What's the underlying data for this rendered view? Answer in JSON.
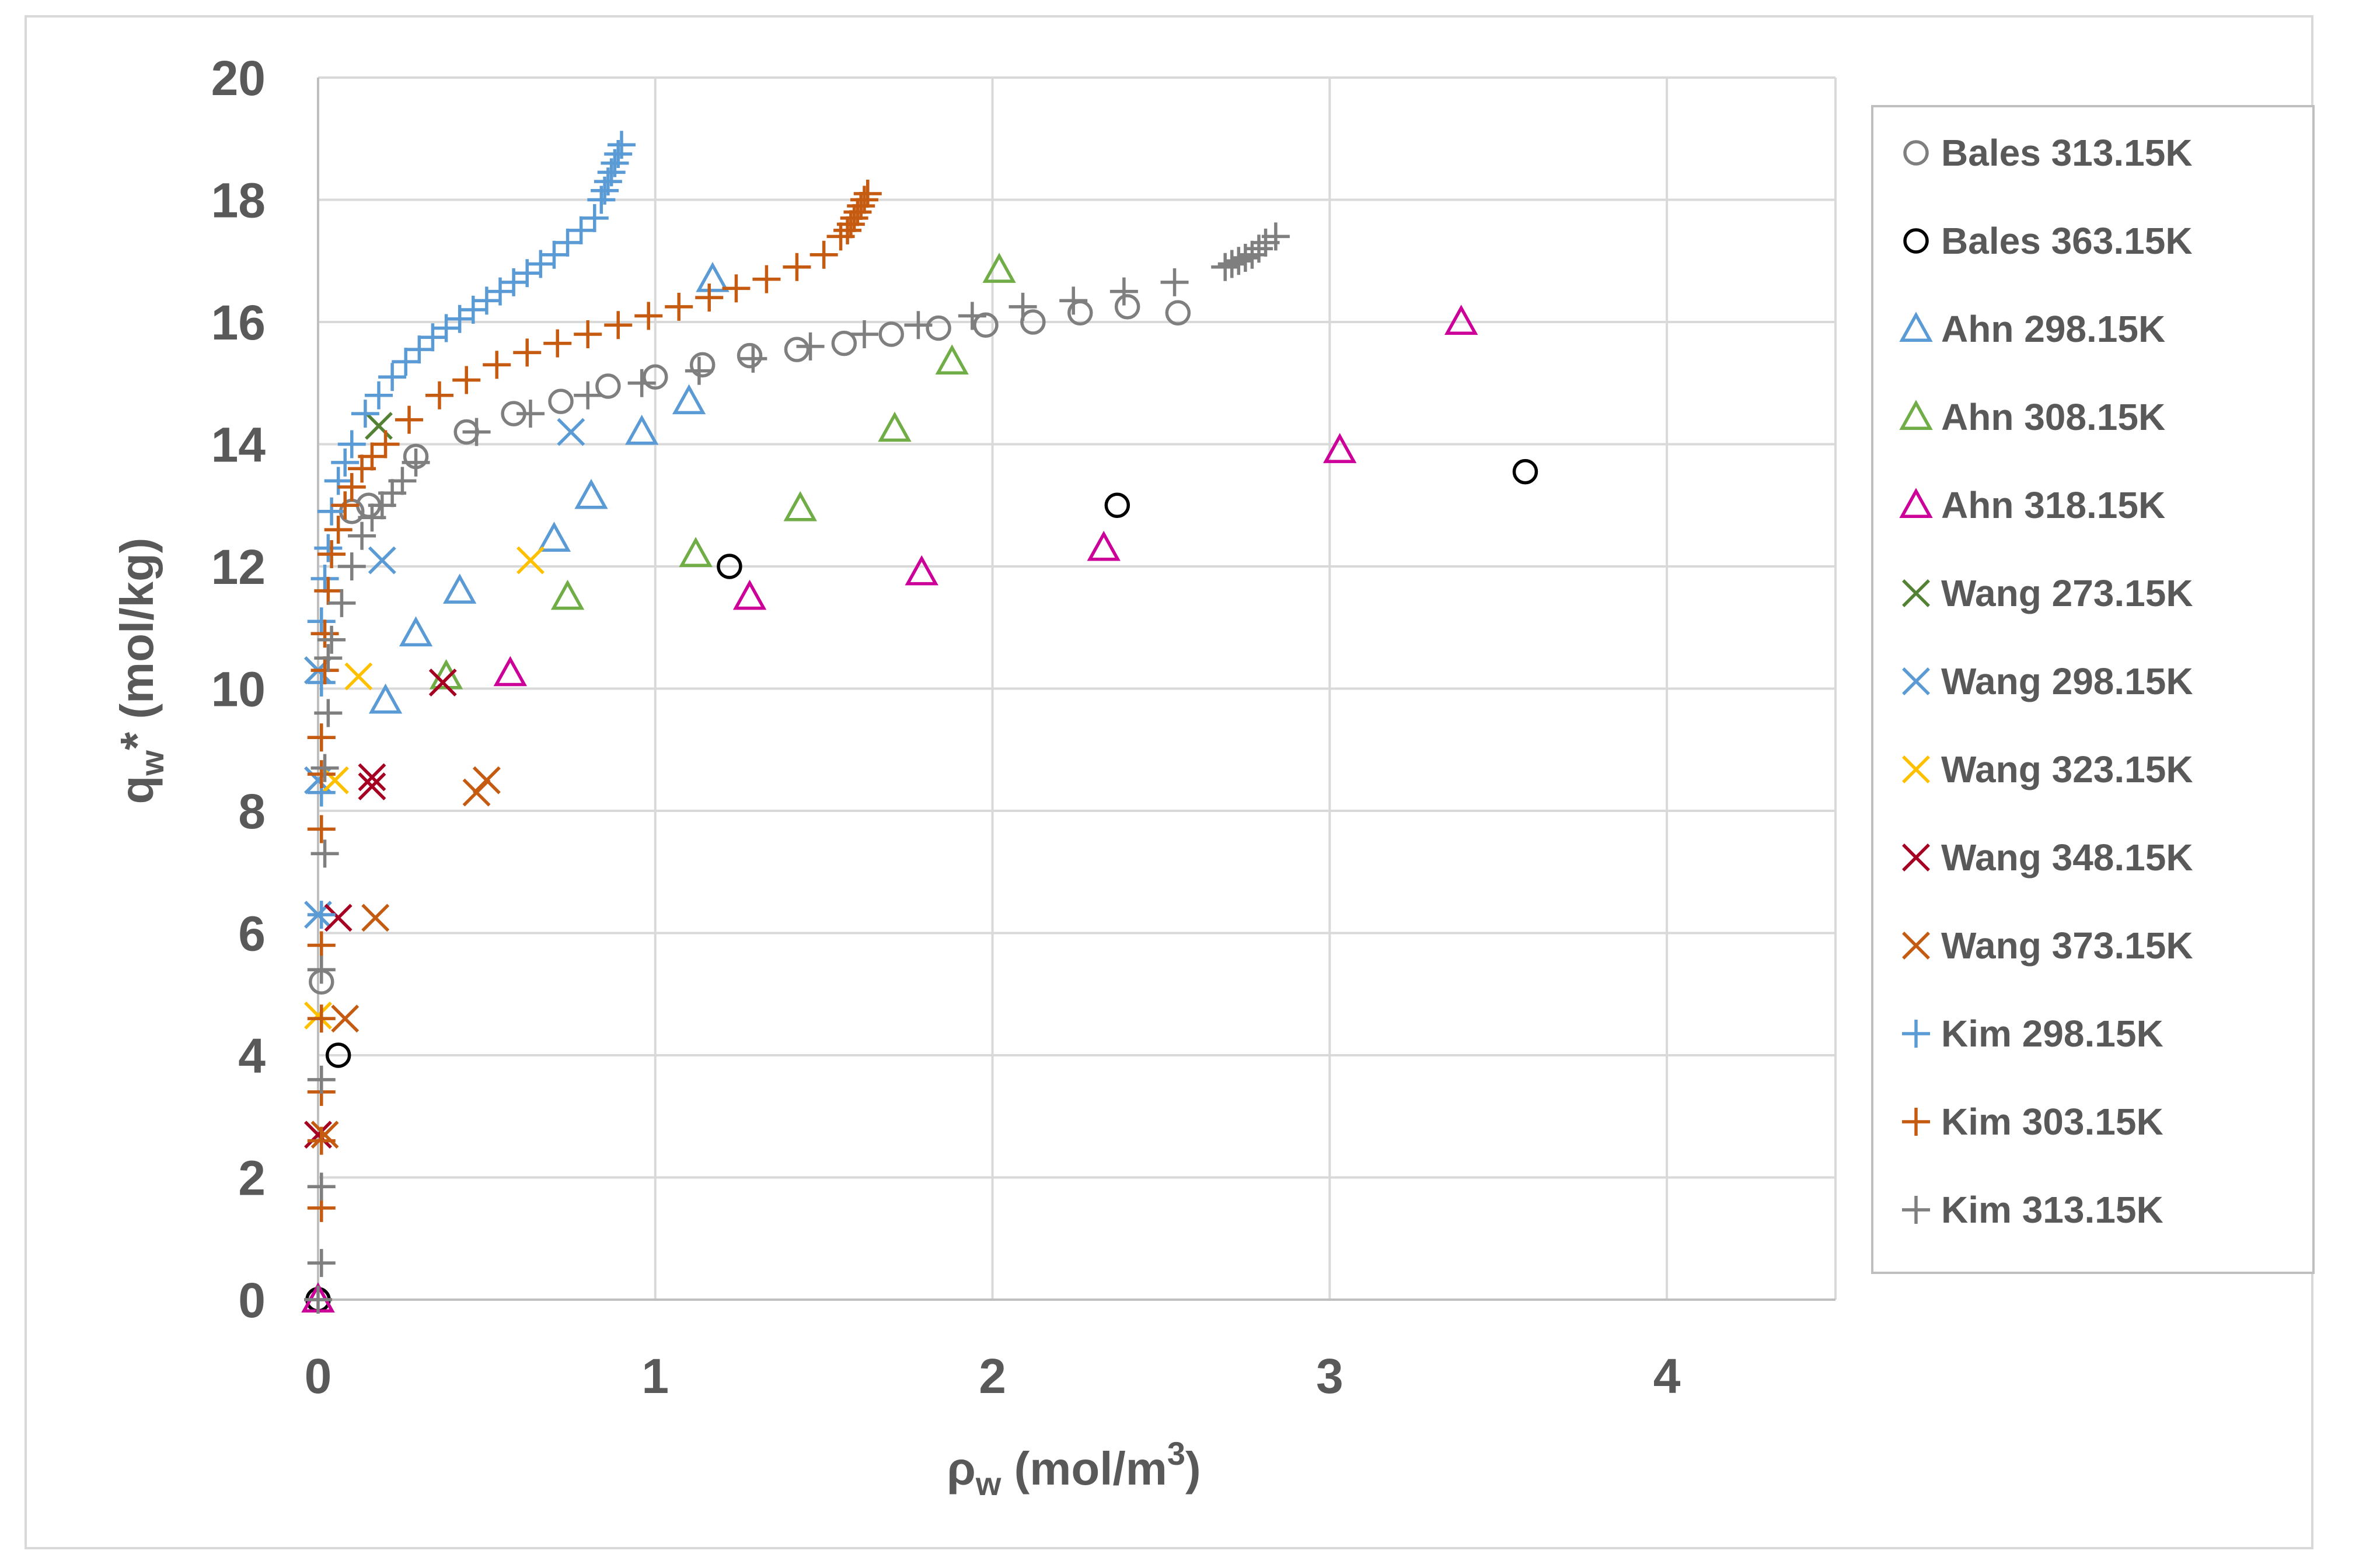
{
  "chart_data": {
    "type": "scatter",
    "title": "",
    "xlabel_parts": {
      "main": "ρ",
      "sub": "w",
      "rest": " (mol/m",
      "sup": "3",
      "end": ")"
    },
    "ylabel_parts": {
      "main": "q",
      "sub": "w",
      "rest": "* (mol/kg)"
    },
    "xlim": [
      0,
      4.5
    ],
    "ylim": [
      0,
      20
    ],
    "x_ticks": [
      0,
      1,
      2,
      3,
      4
    ],
    "y_ticks": [
      0,
      2,
      4,
      6,
      8,
      10,
      12,
      14,
      16,
      18,
      20
    ],
    "grid": true,
    "legend_position": "right",
    "series": [
      {
        "name": "Bales 313.15K",
        "marker": "circle",
        "color": "#7f7f7f",
        "points": [
          [
            0,
            0
          ],
          [
            0.01,
            5.2
          ],
          [
            0.1,
            12.9
          ],
          [
            0.15,
            13.0
          ],
          [
            0.29,
            13.8
          ],
          [
            0.44,
            14.2
          ],
          [
            0.58,
            14.5
          ],
          [
            0.72,
            14.7
          ],
          [
            0.86,
            14.95
          ],
          [
            1.0,
            15.1
          ],
          [
            1.14,
            15.3
          ],
          [
            1.28,
            15.45
          ],
          [
            1.42,
            15.55
          ],
          [
            1.56,
            15.65
          ],
          [
            1.7,
            15.8
          ],
          [
            1.84,
            15.9
          ],
          [
            1.98,
            15.95
          ],
          [
            2.12,
            16.0
          ],
          [
            2.26,
            16.15
          ],
          [
            2.4,
            16.25
          ],
          [
            2.55,
            16.15
          ]
        ]
      },
      {
        "name": "Bales 363.15K",
        "marker": "circle",
        "color": "#000000",
        "points": [
          [
            0,
            0
          ],
          [
            0.06,
            4.0
          ],
          [
            1.22,
            12.0
          ],
          [
            2.37,
            13.0
          ],
          [
            3.58,
            13.55
          ]
        ]
      },
      {
        "name": "Ahn 298.15K",
        "marker": "triangle",
        "color": "#5b9bd5",
        "points": [
          [
            0,
            0
          ],
          [
            0.2,
            9.8
          ],
          [
            0.29,
            10.9
          ],
          [
            0.42,
            11.6
          ],
          [
            0.7,
            12.45
          ],
          [
            0.81,
            13.15
          ],
          [
            0.96,
            14.2
          ],
          [
            1.1,
            14.7
          ],
          [
            1.17,
            16.7
          ]
        ]
      },
      {
        "name": "Ahn 308.15K",
        "marker": "triangle",
        "color": "#70ad47",
        "points": [
          [
            0,
            0
          ],
          [
            0.38,
            10.2
          ],
          [
            0.74,
            11.5
          ],
          [
            1.12,
            12.2
          ],
          [
            1.43,
            12.95
          ],
          [
            1.71,
            14.25
          ],
          [
            1.88,
            15.35
          ],
          [
            2.02,
            16.85
          ]
        ]
      },
      {
        "name": "Ahn 318.15K",
        "marker": "triangle",
        "color": "#cc0099",
        "points": [
          [
            0,
            0
          ],
          [
            0.57,
            10.25
          ],
          [
            1.28,
            11.5
          ],
          [
            1.79,
            11.9
          ],
          [
            2.33,
            12.3
          ],
          [
            3.03,
            13.9
          ],
          [
            3.39,
            16.0
          ]
        ]
      },
      {
        "name": "Wang 273.15K",
        "marker": "x",
        "color": "#548235",
        "points": [
          [
            0,
            10.3
          ],
          [
            0.18,
            14.3
          ]
        ]
      },
      {
        "name": "Wang 298.15K",
        "marker": "x",
        "color": "#5b9bd5",
        "points": [
          [
            0,
            6.3
          ],
          [
            0,
            8.5
          ],
          [
            0,
            10.3
          ],
          [
            0.19,
            12.1
          ],
          [
            0.75,
            14.2
          ]
        ]
      },
      {
        "name": "Wang 323.15K",
        "marker": "x",
        "color": "#ffc000",
        "points": [
          [
            0,
            4.65
          ],
          [
            0.05,
            8.5
          ],
          [
            0.12,
            10.2
          ],
          [
            0.63,
            12.1
          ]
        ]
      },
      {
        "name": "Wang 348.15K",
        "marker": "x",
        "color": "#a50021",
        "points": [
          [
            0,
            2.7
          ],
          [
            0.06,
            6.25
          ],
          [
            0.16,
            8.4
          ],
          [
            0.16,
            8.55
          ],
          [
            0.37,
            10.1
          ]
        ]
      },
      {
        "name": "Wang 373.15K",
        "marker": "x",
        "color": "#c55a11",
        "points": [
          [
            0.02,
            2.7
          ],
          [
            0.08,
            4.6
          ],
          [
            0.17,
            6.25
          ],
          [
            0.47,
            8.3
          ],
          [
            0.5,
            8.5
          ]
        ]
      },
      {
        "name": "Kim 298.15K",
        "marker": "plus",
        "color": "#5b9bd5",
        "points": [
          [
            0.01,
            6.3
          ],
          [
            0.01,
            8.3
          ],
          [
            0.01,
            9.2
          ],
          [
            0.01,
            10.1
          ],
          [
            0.01,
            11.1
          ],
          [
            0.02,
            11.8
          ],
          [
            0.03,
            12.3
          ],
          [
            0.04,
            12.9
          ],
          [
            0.06,
            13.4
          ],
          [
            0.08,
            13.7
          ],
          [
            0.1,
            14.0
          ],
          [
            0.14,
            14.5
          ],
          [
            0.18,
            14.8
          ],
          [
            0.22,
            15.1
          ],
          [
            0.26,
            15.35
          ],
          [
            0.3,
            15.55
          ],
          [
            0.34,
            15.75
          ],
          [
            0.38,
            15.9
          ],
          [
            0.42,
            16.05
          ],
          [
            0.46,
            16.2
          ],
          [
            0.5,
            16.35
          ],
          [
            0.54,
            16.5
          ],
          [
            0.58,
            16.65
          ],
          [
            0.62,
            16.8
          ],
          [
            0.66,
            16.95
          ],
          [
            0.7,
            17.1
          ],
          [
            0.74,
            17.3
          ],
          [
            0.78,
            17.5
          ],
          [
            0.82,
            17.7
          ],
          [
            0.84,
            18.0
          ],
          [
            0.85,
            18.15
          ],
          [
            0.86,
            18.3
          ],
          [
            0.87,
            18.45
          ],
          [
            0.88,
            18.6
          ],
          [
            0.89,
            18.75
          ],
          [
            0.9,
            18.9
          ]
        ]
      },
      {
        "name": "Kim 303.15K",
        "marker": "plus",
        "color": "#c55a11",
        "points": [
          [
            0.01,
            1.5
          ],
          [
            0.01,
            2.6
          ],
          [
            0.01,
            3.4
          ],
          [
            0.01,
            4.6
          ],
          [
            0.01,
            5.8
          ],
          [
            0.01,
            7.7
          ],
          [
            0.01,
            8.6
          ],
          [
            0.01,
            9.2
          ],
          [
            0.02,
            10.3
          ],
          [
            0.02,
            10.9
          ],
          [
            0.03,
            11.6
          ],
          [
            0.04,
            12.2
          ],
          [
            0.06,
            12.6
          ],
          [
            0.08,
            13.0
          ],
          [
            0.1,
            13.3
          ],
          [
            0.13,
            13.6
          ],
          [
            0.16,
            13.8
          ],
          [
            0.2,
            14.0
          ],
          [
            0.27,
            14.4
          ],
          [
            0.36,
            14.8
          ],
          [
            0.44,
            15.05
          ],
          [
            0.53,
            15.3
          ],
          [
            0.62,
            15.5
          ],
          [
            0.71,
            15.65
          ],
          [
            0.8,
            15.8
          ],
          [
            0.89,
            15.95
          ],
          [
            0.98,
            16.1
          ],
          [
            1.07,
            16.25
          ],
          [
            1.16,
            16.4
          ],
          [
            1.24,
            16.55
          ],
          [
            1.33,
            16.7
          ],
          [
            1.42,
            16.9
          ],
          [
            1.5,
            17.1
          ],
          [
            1.55,
            17.4
          ],
          [
            1.57,
            17.5
          ],
          [
            1.58,
            17.6
          ],
          [
            1.59,
            17.7
          ],
          [
            1.6,
            17.8
          ],
          [
            1.61,
            17.9
          ],
          [
            1.62,
            18.0
          ],
          [
            1.63,
            18.1
          ]
        ]
      },
      {
        "name": "Kim 313.15K",
        "marker": "plus",
        "color": "#7f7f7f",
        "points": [
          [
            0,
            0
          ],
          [
            0.01,
            0.6
          ],
          [
            0.01,
            1.85
          ],
          [
            0.01,
            3.6
          ],
          [
            0.01,
            5.4
          ],
          [
            0.02,
            7.3
          ],
          [
            0.02,
            8.7
          ],
          [
            0.03,
            9.6
          ],
          [
            0.03,
            10.5
          ],
          [
            0.04,
            10.8
          ],
          [
            0.07,
            11.4
          ],
          [
            0.1,
            12.0
          ],
          [
            0.13,
            12.5
          ],
          [
            0.16,
            12.8
          ],
          [
            0.19,
            13.0
          ],
          [
            0.22,
            13.2
          ],
          [
            0.25,
            13.4
          ],
          [
            0.29,
            13.7
          ],
          [
            0.47,
            14.2
          ],
          [
            0.63,
            14.5
          ],
          [
            0.8,
            14.8
          ],
          [
            0.96,
            15.0
          ],
          [
            1.13,
            15.2
          ],
          [
            1.29,
            15.4
          ],
          [
            1.46,
            15.6
          ],
          [
            1.62,
            15.8
          ],
          [
            1.78,
            15.95
          ],
          [
            1.94,
            16.1
          ],
          [
            2.09,
            16.25
          ],
          [
            2.24,
            16.35
          ],
          [
            2.39,
            16.5
          ],
          [
            2.54,
            16.65
          ],
          [
            2.69,
            16.9
          ],
          [
            2.71,
            16.95
          ],
          [
            2.73,
            17.0
          ],
          [
            2.75,
            17.05
          ],
          [
            2.77,
            17.1
          ],
          [
            2.79,
            17.2
          ],
          [
            2.81,
            17.3
          ],
          [
            2.84,
            17.4
          ]
        ]
      }
    ]
  }
}
